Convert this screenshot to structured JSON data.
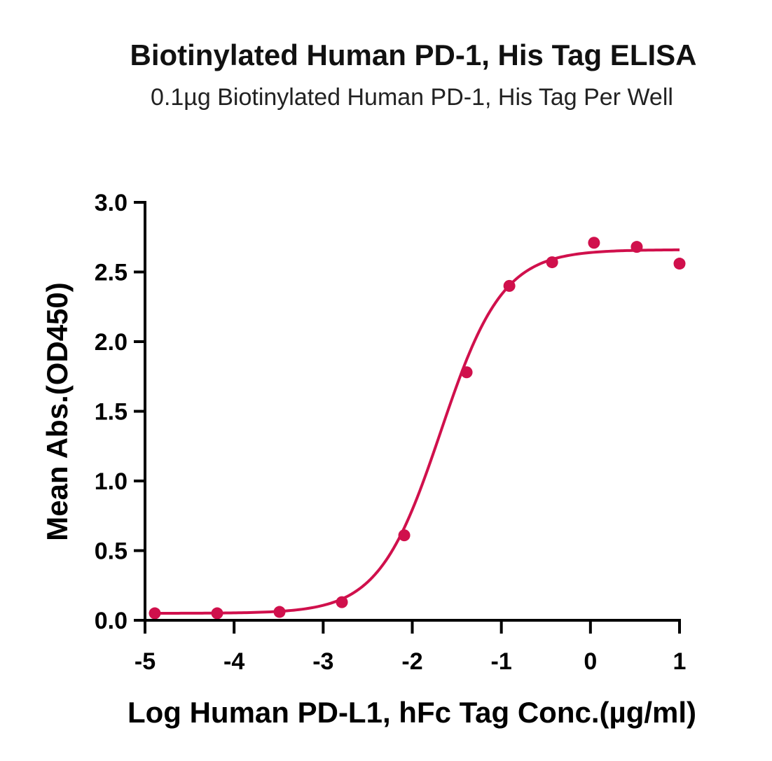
{
  "chart_data": {
    "type": "scatter",
    "title": "Biotinylated Human PD-1, His Tag ELISA",
    "subtitle": "0.1µg Biotinylated Human PD-1, His Tag Per Well",
    "xlabel": "Log Human PD-L1, hFc Tag Conc.(µg/ml)",
    "ylabel": "Mean Abs.(OD450)",
    "xlim": [
      -5,
      1
    ],
    "ylim": [
      0,
      3
    ],
    "xticks": [
      "-5",
      "-4",
      "-3",
      "-2",
      "-1",
      "0",
      "1"
    ],
    "yticks": [
      "0.0",
      "0.5",
      "1.0",
      "1.5",
      "2.0",
      "2.5",
      "3.0"
    ],
    "grid": false,
    "series_color": "#d0104c",
    "points": [
      {
        "x": -4.89,
        "y": 0.05
      },
      {
        "x": -4.19,
        "y": 0.05
      },
      {
        "x": -3.49,
        "y": 0.06
      },
      {
        "x": -2.79,
        "y": 0.13
      },
      {
        "x": -2.09,
        "y": 0.61
      },
      {
        "x": -1.39,
        "y": 1.78
      },
      {
        "x": -0.91,
        "y": 2.4
      },
      {
        "x": -0.43,
        "y": 2.57
      },
      {
        "x": 0.04,
        "y": 2.71
      },
      {
        "x": 0.52,
        "y": 2.68
      },
      {
        "x": 1.0,
        "y": 2.56
      }
    ],
    "fit": {
      "type": "four-parameter logistic",
      "bottom": 0.05,
      "top": 2.66,
      "log_ec50": -1.68,
      "hill_slope": 1.25,
      "x_range": [
        -4.89,
        1.0
      ]
    }
  }
}
